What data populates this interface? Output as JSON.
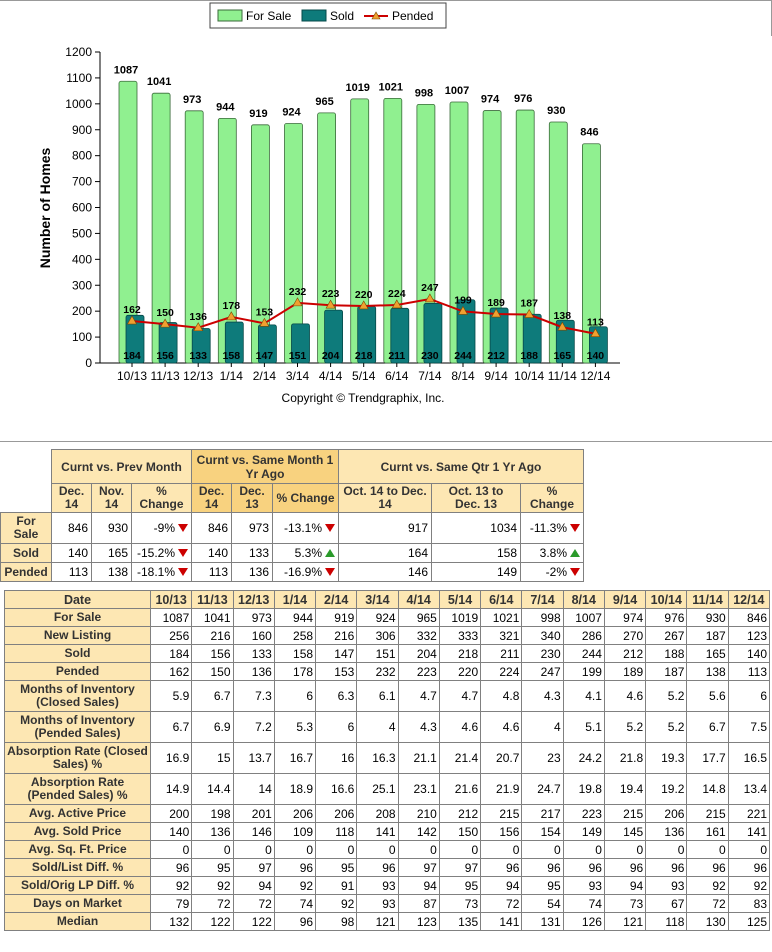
{
  "chart_data": {
    "type": "bar",
    "categories": [
      "10/13",
      "11/13",
      "12/13",
      "1/14",
      "2/14",
      "3/14",
      "4/14",
      "5/14",
      "6/14",
      "7/14",
      "8/14",
      "9/14",
      "10/14",
      "11/14",
      "12/14"
    ],
    "series": [
      {
        "name": "For Sale",
        "type": "bar",
        "color": "#90f090",
        "values": [
          1087,
          1041,
          973,
          944,
          919,
          924,
          965,
          1019,
          1021,
          998,
          1007,
          974,
          976,
          930,
          846
        ]
      },
      {
        "name": "Sold",
        "type": "bar",
        "color": "#0e7b7b",
        "values": [
          184,
          156,
          133,
          158,
          147,
          151,
          204,
          218,
          211,
          230,
          244,
          212,
          188,
          165,
          140
        ]
      },
      {
        "name": "Pended",
        "type": "line",
        "color": "#cc0000",
        "marker_color": "#f0a030",
        "values": [
          162,
          150,
          136,
          178,
          153,
          232,
          223,
          220,
          224,
          247,
          199,
          189,
          187,
          138,
          113
        ]
      }
    ],
    "ylabel": "Number of Homes",
    "xlabel": "",
    "ylim": [
      0,
      1200
    ],
    "yticks": [
      0,
      100,
      200,
      300,
      400,
      500,
      600,
      700,
      800,
      900,
      1000,
      1100,
      1200
    ],
    "legend": "top-center",
    "copyright": "Copyright © Trendgraphix, Inc."
  },
  "comparison": {
    "groups": [
      "Curnt vs. Prev Month",
      "Curnt vs. Same Month 1 Yr Ago",
      "Curnt vs. Same Qtr 1 Yr Ago"
    ],
    "subheaders": [
      "Dec. 14",
      "Nov. 14",
      "% Change",
      "Dec. 14",
      "Dec. 13",
      "% Change",
      "Oct. 14 to Dec. 14",
      "Oct. 13 to Dec. 13",
      "% Change"
    ],
    "rows": [
      {
        "label": "For Sale",
        "values": [
          "846",
          "930",
          "-9%",
          "846",
          "973",
          "-13.1%",
          "917",
          "1034",
          "-11.3%"
        ],
        "dirs": [
          "down",
          "down",
          "down"
        ]
      },
      {
        "label": "Sold",
        "values": [
          "140",
          "165",
          "-15.2%",
          "140",
          "133",
          "5.3%",
          "164",
          "158",
          "3.8%"
        ],
        "dirs": [
          "down",
          "up",
          "up"
        ]
      },
      {
        "label": "Pended",
        "values": [
          "113",
          "138",
          "-18.1%",
          "113",
          "136",
          "-16.9%",
          "146",
          "149",
          "-2%"
        ],
        "dirs": [
          "down",
          "down",
          "down"
        ]
      }
    ]
  },
  "detail": {
    "header_label": "Date",
    "months": [
      "10/13",
      "11/13",
      "12/13",
      "1/14",
      "2/14",
      "3/14",
      "4/14",
      "5/14",
      "6/14",
      "7/14",
      "8/14",
      "9/14",
      "10/14",
      "11/14",
      "12/14"
    ],
    "rows": [
      {
        "label": "For Sale",
        "two": false,
        "values": [
          "1087",
          "1041",
          "973",
          "944",
          "919",
          "924",
          "965",
          "1019",
          "1021",
          "998",
          "1007",
          "974",
          "976",
          "930",
          "846"
        ]
      },
      {
        "label": "New Listing",
        "two": false,
        "values": [
          "256",
          "216",
          "160",
          "258",
          "216",
          "306",
          "332",
          "333",
          "321",
          "340",
          "286",
          "270",
          "267",
          "187",
          "123"
        ]
      },
      {
        "label": "Sold",
        "two": false,
        "values": [
          "184",
          "156",
          "133",
          "158",
          "147",
          "151",
          "204",
          "218",
          "211",
          "230",
          "244",
          "212",
          "188",
          "165",
          "140"
        ]
      },
      {
        "label": "Pended",
        "two": false,
        "values": [
          "162",
          "150",
          "136",
          "178",
          "153",
          "232",
          "223",
          "220",
          "224",
          "247",
          "199",
          "189",
          "187",
          "138",
          "113"
        ]
      },
      {
        "label": "Months of Inventory (Closed Sales)",
        "two": true,
        "values": [
          "5.9",
          "6.7",
          "7.3",
          "6",
          "6.3",
          "6.1",
          "4.7",
          "4.7",
          "4.8",
          "4.3",
          "4.1",
          "4.6",
          "5.2",
          "5.6",
          "6"
        ]
      },
      {
        "label": "Months of Inventory (Pended Sales)",
        "two": true,
        "values": [
          "6.7",
          "6.9",
          "7.2",
          "5.3",
          "6",
          "4",
          "4.3",
          "4.6",
          "4.6",
          "4",
          "5.1",
          "5.2",
          "5.2",
          "6.7",
          "7.5"
        ]
      },
      {
        "label": "Absorption Rate (Closed Sales) %",
        "two": true,
        "values": [
          "16.9",
          "15",
          "13.7",
          "16.7",
          "16",
          "16.3",
          "21.1",
          "21.4",
          "20.7",
          "23",
          "24.2",
          "21.8",
          "19.3",
          "17.7",
          "16.5"
        ]
      },
      {
        "label": "Absorption Rate (Pended Sales) %",
        "two": true,
        "values": [
          "14.9",
          "14.4",
          "14",
          "18.9",
          "16.6",
          "25.1",
          "23.1",
          "21.6",
          "21.9",
          "24.7",
          "19.8",
          "19.4",
          "19.2",
          "14.8",
          "13.4"
        ]
      },
      {
        "label": "Avg. Active Price",
        "two": false,
        "values": [
          "200",
          "198",
          "201",
          "206",
          "206",
          "208",
          "210",
          "212",
          "215",
          "217",
          "223",
          "215",
          "206",
          "215",
          "221"
        ]
      },
      {
        "label": "Avg. Sold Price",
        "two": false,
        "values": [
          "140",
          "136",
          "146",
          "109",
          "118",
          "141",
          "142",
          "150",
          "156",
          "154",
          "149",
          "145",
          "136",
          "161",
          "141"
        ]
      },
      {
        "label": "Avg. Sq. Ft. Price",
        "two": false,
        "values": [
          "0",
          "0",
          "0",
          "0",
          "0",
          "0",
          "0",
          "0",
          "0",
          "0",
          "0",
          "0",
          "0",
          "0",
          "0"
        ]
      },
      {
        "label": "Sold/List Diff. %",
        "two": false,
        "values": [
          "96",
          "95",
          "97",
          "96",
          "95",
          "96",
          "97",
          "97",
          "96",
          "96",
          "96",
          "96",
          "96",
          "96",
          "96"
        ]
      },
      {
        "label": "Sold/Orig LP Diff. %",
        "two": false,
        "values": [
          "92",
          "92",
          "94",
          "92",
          "91",
          "93",
          "94",
          "95",
          "94",
          "95",
          "93",
          "94",
          "93",
          "92",
          "92"
        ]
      },
      {
        "label": "Days on Market",
        "two": false,
        "values": [
          "79",
          "72",
          "72",
          "74",
          "92",
          "93",
          "87",
          "73",
          "72",
          "54",
          "74",
          "73",
          "67",
          "72",
          "83"
        ]
      },
      {
        "label": "Median",
        "two": false,
        "values": [
          "132",
          "122",
          "122",
          "96",
          "98",
          "121",
          "123",
          "135",
          "141",
          "131",
          "126",
          "121",
          "118",
          "130",
          "125"
        ]
      }
    ]
  }
}
